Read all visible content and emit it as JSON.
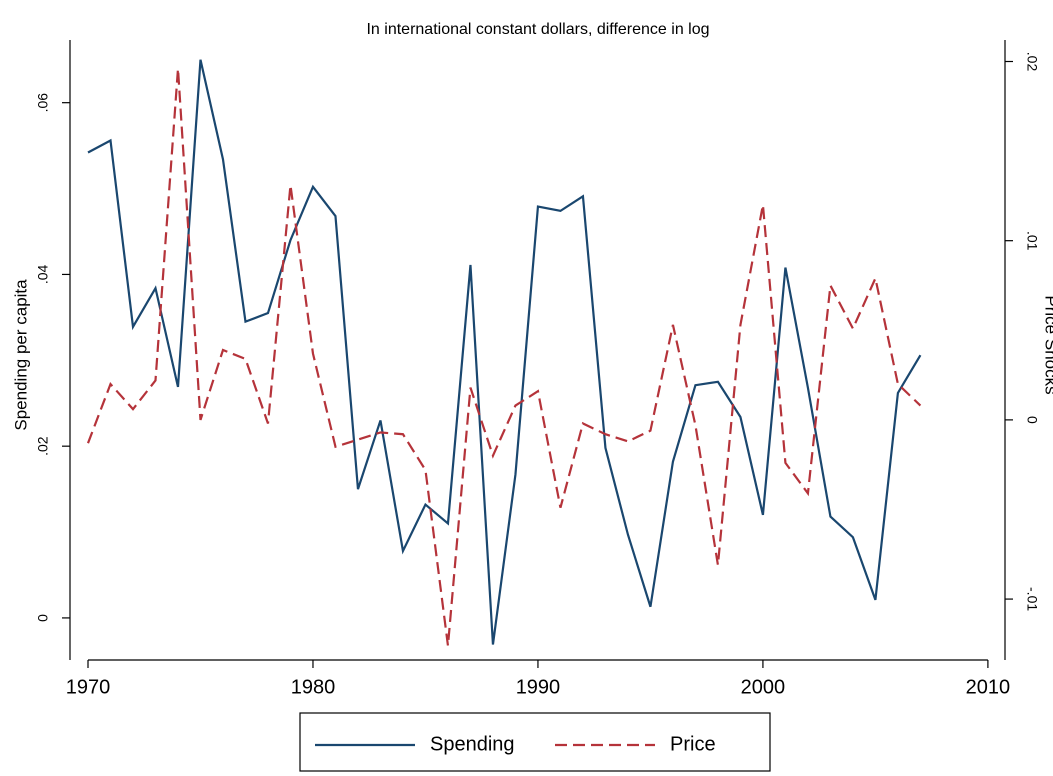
{
  "chart_data": {
    "type": "line",
    "title": "In international constant dollars, difference in log",
    "y_label": "Spending per capita",
    "y2_label": "Price Shocks",
    "x": [
      1970,
      1971,
      1972,
      1973,
      1974,
      1975,
      1976,
      1977,
      1978,
      1979,
      1980,
      1981,
      1982,
      1983,
      1984,
      1985,
      1986,
      1987,
      1988,
      1989,
      1990,
      1991,
      1992,
      1993,
      1994,
      1995,
      1996,
      1997,
      1998,
      1999,
      2000,
      2001,
      2002,
      2003,
      2004,
      2005,
      2006,
      2007
    ],
    "series": [
      {
        "name": "Spending",
        "color": "#1a476f",
        "dash": "solid",
        "axis": "y",
        "values": [
          0.0542,
          0.0556,
          0.0339,
          0.0384,
          0.0269,
          0.065,
          0.0534,
          0.0345,
          0.0355,
          0.044,
          0.0502,
          0.0468,
          0.015,
          0.023,
          0.0078,
          0.0132,
          0.011,
          0.0411,
          -0.0031,
          0.0167,
          0.0479,
          0.0474,
          0.0491,
          0.0198,
          0.0097,
          0.0013,
          0.0182,
          0.0271,
          0.0275,
          0.0234,
          0.012,
          0.0408,
          0.0268,
          0.0118,
          0.0094,
          0.0021,
          0.0262,
          0.0306
        ]
      },
      {
        "name": "Price",
        "color": "#b5333a",
        "dash": "dashed",
        "axis": "y2",
        "values": [
          -0.0013,
          0.002,
          0.0006,
          0.0022,
          0.0196,
          0.0,
          0.0039,
          0.0034,
          -0.0002,
          0.0131,
          0.0037,
          -0.0015,
          -0.0011,
          -0.0007,
          -0.0008,
          -0.0028,
          -0.0126,
          0.0018,
          -0.002,
          0.0008,
          0.0016,
          -0.0049,
          -0.0002,
          -0.0008,
          -0.0012,
          -0.0006,
          0.0053,
          -0.0003,
          -0.0081,
          0.0053,
          0.012,
          -0.0024,
          -0.0041,
          0.0075,
          0.0051,
          0.0079,
          0.002,
          0.0008
        ]
      }
    ],
    "xlim": [
      1969.2,
      2010.76
    ],
    "xticks": [
      1970,
      1980,
      1990,
      2000,
      2010
    ],
    "ylim": [
      -0.0049,
      0.0673
    ],
    "yticks": [
      0,
      {
        "value": 0.02,
        "label": ".02"
      },
      {
        "value": 0.04,
        "label": ".04"
      },
      {
        "value": 0.06,
        "label": ".06"
      }
    ],
    "y2lim": [
      -0.0134,
      0.0212
    ],
    "y2ticks": [
      {
        "value": -0.01,
        "label": "-.01"
      },
      0,
      {
        "value": 0.01,
        "label": ".01"
      },
      {
        "value": 0.02,
        "label": ".02"
      }
    ],
    "grid": false,
    "legend": "bottom"
  }
}
